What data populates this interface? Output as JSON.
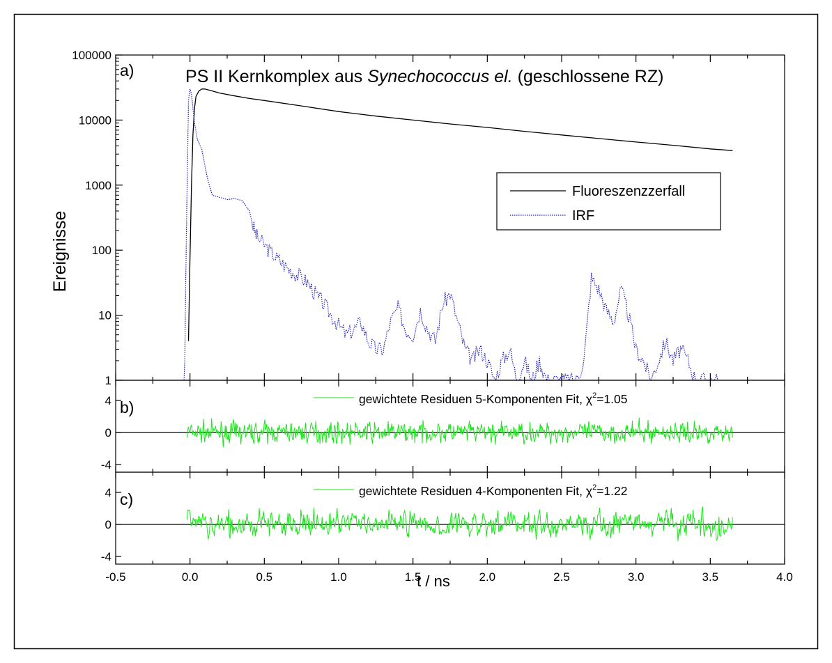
{
  "figure": {
    "title_prefix": "PS II Kernkomplex aus ",
    "title_italic": "Synechococcus el.",
    "title_suffix": " (geschlossene RZ)",
    "xlabel": "t / ns",
    "colors": {
      "decay": "#000000",
      "irf": "#1f1fc8",
      "resid": "#19e619",
      "frame": "#000000"
    }
  },
  "chart_data": [
    {
      "type": "line",
      "panel_label": "a)",
      "ylabel": "Ereignisse",
      "yscale": "log",
      "ylim": [
        1,
        100000
      ],
      "xlim": [
        -0.5,
        4.0
      ],
      "xticks": [
        "-0.5",
        "0.0",
        "0.5",
        "1.0",
        "1.5",
        "2.0",
        "2.5",
        "3.0",
        "3.5",
        "4.0"
      ],
      "yticks": [
        "1",
        "10",
        "100",
        "1000",
        "10000",
        "100000"
      ],
      "legend_position": "right-middle",
      "series": [
        {
          "name": "Fluoreszenzzerfall",
          "style": "solid",
          "x": [
            -0.01,
            0.0,
            0.01,
            0.02,
            0.03,
            0.04,
            0.06,
            0.08,
            0.1,
            0.15,
            0.2,
            0.3,
            0.4,
            0.5,
            0.75,
            1.0,
            1.25,
            1.5,
            1.75,
            2.0,
            2.25,
            2.5,
            2.75,
            3.0,
            3.25,
            3.5,
            3.65
          ],
          "y": [
            4,
            80,
            1000,
            6000,
            15000,
            23000,
            28000,
            30000,
            30000,
            28000,
            26000,
            23500,
            21500,
            20000,
            16500,
            13500,
            11500,
            10000,
            8700,
            7700,
            6700,
            5900,
            5200,
            4600,
            4100,
            3600,
            3400
          ]
        },
        {
          "name": "IRF",
          "style": "dotted",
          "x": [
            -0.04,
            -0.035,
            -0.03,
            -0.02,
            -0.01,
            0.0,
            0.01,
            0.02,
            0.03,
            0.05,
            0.08,
            0.1,
            0.12,
            0.15,
            0.2,
            0.25,
            0.3,
            0.35,
            0.4,
            0.42,
            0.45,
            0.5,
            0.55,
            0.6,
            0.65,
            0.7,
            0.75,
            0.8,
            0.85,
            0.9,
            0.95,
            1.0,
            1.05,
            1.1,
            1.15,
            1.2,
            1.25,
            1.3,
            1.35,
            1.4,
            1.45,
            1.5,
            1.55,
            1.6,
            1.65,
            1.7,
            1.75,
            1.8,
            1.85,
            1.9,
            1.95,
            2.0,
            2.05,
            2.1,
            2.15,
            2.2,
            2.25,
            2.3,
            2.35,
            2.4,
            2.45,
            2.5,
            2.55,
            2.6,
            2.65,
            2.7,
            2.75,
            2.8,
            2.85,
            2.9,
            2.95,
            3.0,
            3.05,
            3.1,
            3.15,
            3.2,
            3.25,
            3.3,
            3.35,
            3.4,
            3.45,
            3.5,
            3.55
          ],
          "y": [
            1,
            2,
            20,
            800,
            20000,
            30000,
            25000,
            15000,
            9000,
            5000,
            3500,
            2000,
            1200,
            700,
            650,
            600,
            620,
            580,
            400,
            250,
            160,
            120,
            90,
            70,
            55,
            45,
            38,
            30,
            20,
            15,
            10,
            7,
            5,
            6,
            8,
            4,
            3,
            3,
            8,
            13,
            6,
            5,
            12,
            6,
            4,
            15,
            22,
            8,
            3,
            2,
            3,
            2,
            1,
            2,
            3,
            1,
            2,
            1,
            2,
            1,
            1,
            1,
            1,
            1,
            2,
            38,
            25,
            12,
            8,
            25,
            10,
            3,
            2,
            1,
            2,
            4,
            2,
            3,
            2,
            1,
            1,
            1,
            1
          ]
        }
      ]
    },
    {
      "type": "line",
      "panel_label": "b)",
      "ylim": [
        -5,
        5
      ],
      "yticks": [
        "4",
        "0",
        "-4"
      ],
      "series": [
        {
          "name": "gewichtete Residuen 5-Komponenten Fit, χ²=1.05",
          "legend_base": "gewichtete Residuen 5-Komponenten Fit, ",
          "chi_value": "=1.05",
          "amplitude": 1.05,
          "seed": 7
        }
      ]
    },
    {
      "type": "line",
      "panel_label": "c)",
      "ylim": [
        -5,
        5
      ],
      "yticks": [
        "4",
        "0",
        "-4"
      ],
      "series": [
        {
          "name": "gewichtete Residuen 4-Komponenten Fit, χ²=1.22",
          "legend_base": "gewichtete Residuen 4-Komponenten Fit, ",
          "chi_value": "=1.22",
          "amplitude": 1.22,
          "seed": 13
        }
      ]
    }
  ]
}
